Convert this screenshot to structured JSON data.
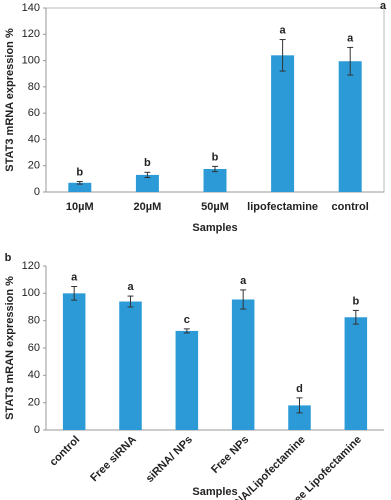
{
  "chart_data": [
    {
      "type": "bar",
      "panel_label": "a",
      "y_label": "STAT3 mRNA expression %",
      "x_label": "Samples",
      "categories": [
        "10µM",
        "20µM",
        "50µM",
        "lipofectamine",
        "control"
      ],
      "values": [
        7,
        13,
        17.5,
        104,
        99.5
      ],
      "errors": [
        1,
        2,
        2,
        12,
        10.5
      ],
      "letters": [
        "b",
        "b",
        "b",
        "a",
        "a"
      ],
      "color": "#2b9ad6",
      "ylim": [
        0,
        140
      ],
      "yticks": [
        0,
        20,
        40,
        60,
        80,
        100,
        120,
        140
      ]
    },
    {
      "type": "bar",
      "panel_label": "b",
      "y_label": "STAT3 mRAN expression %",
      "x_label": "Samples",
      "categories": [
        "control",
        "Free siRNA",
        "siRNA/ NPs",
        "Free NPs",
        "siRNA/Lipofectamine",
        "Free Lipofectamine"
      ],
      "values": [
        100,
        94,
        72.5,
        95.5,
        18,
        82.5
      ],
      "errors": [
        5,
        4,
        1.5,
        7,
        5.5,
        5
      ],
      "letters": [
        "a",
        "a",
        "c",
        "a",
        "d",
        "b"
      ],
      "color": "#2b9ad6",
      "ylim": [
        0,
        120
      ],
      "yticks": [
        0,
        20,
        40,
        60,
        80,
        100,
        120
      ]
    }
  ]
}
